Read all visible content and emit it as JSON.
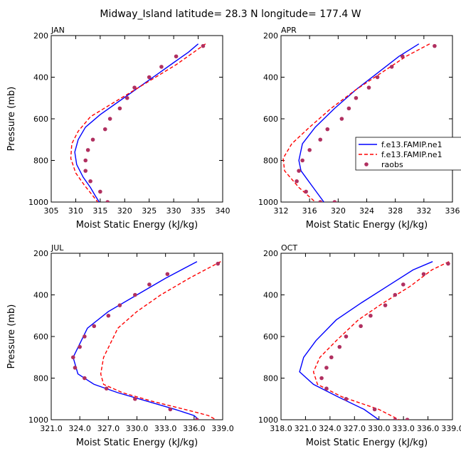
{
  "page_title": "Midway_Island   latitude= 28.3 N longitude= 177.4 W",
  "colors": {
    "model1": "#0000ff",
    "model2": "#ff0000",
    "raobs": "#b03060",
    "axis": "#000000"
  },
  "legend": {
    "items": [
      {
        "label": "f.e13.FAMIP.ne1",
        "style": "solid",
        "color": "#0000ff"
      },
      {
        "label": "f.e13.FAMIP.ne1",
        "style": "dashed",
        "color": "#ff0000"
      },
      {
        "label": "raobs",
        "style": "marker",
        "color": "#b03060"
      }
    ]
  },
  "chart_data": [
    {
      "type": "line",
      "title": "JAN",
      "xlabel": "Moist Static Energy (kJ/kg)",
      "ylabel": "Pressure (mb)",
      "xlim": [
        305,
        340
      ],
      "ylim": [
        1000,
        200
      ],
      "xticks": [
        305,
        310,
        315,
        320,
        325,
        330,
        335,
        340
      ],
      "xtick_labels": [
        "305",
        "310",
        "315",
        "320",
        "325",
        "330",
        "335",
        "340"
      ],
      "yticks": [
        200,
        400,
        600,
        800,
        1000
      ],
      "ytick_labels": [
        "200",
        "400",
        "600",
        "800",
        "1000"
      ],
      "series": [
        {
          "name": "f.e13.FAMIP.ne1",
          "style": "solid",
          "x": [
            335.0,
            333.0,
            330.0,
            327.0,
            324.0,
            321.0,
            318.0,
            315.0,
            312.0,
            310.5,
            309.8,
            310.2,
            311.5,
            313.0,
            314.0,
            314.8
          ],
          "y": [
            240,
            280,
            330,
            380,
            430,
            480,
            530,
            580,
            640,
            700,
            760,
            820,
            880,
            930,
            970,
            1000
          ]
        },
        {
          "name": "f.e13.FAMIP.ne1",
          "style": "dashed",
          "x": [
            336.5,
            333.5,
            330.5,
            327.0,
            323.5,
            320.0,
            316.5,
            313.0,
            310.5,
            309.2,
            309.0,
            310.0,
            311.8,
            313.5,
            314.5
          ],
          "y": [
            240,
            290,
            340,
            390,
            440,
            490,
            540,
            590,
            660,
            720,
            790,
            860,
            920,
            970,
            1000
          ]
        },
        {
          "name": "raobs",
          "style": "markers",
          "x": [
            336.0,
            330.5,
            327.5,
            325.0,
            322.0,
            320.5,
            319.0,
            317.0,
            316.0,
            313.5,
            312.5,
            312.0,
            312.0,
            313.0,
            315.0,
            316.5
          ],
          "y": [
            250,
            300,
            350,
            400,
            450,
            500,
            550,
            600,
            650,
            700,
            750,
            800,
            850,
            900,
            950,
            1000
          ]
        }
      ]
    },
    {
      "type": "line",
      "title": "APR",
      "xlabel": "Moist Static Energy (kJ/kg)",
      "ylabel": "Pressure (mb)",
      "xlim": [
        312,
        336
      ],
      "ylim": [
        1000,
        200
      ],
      "xticks": [
        312,
        316,
        320,
        324,
        328,
        332,
        336
      ],
      "xtick_labels": [
        "312",
        "316",
        "320",
        "324",
        "328",
        "332",
        "336"
      ],
      "yticks": [
        200,
        400,
        600,
        800,
        1000
      ],
      "ytick_labels": [
        "200",
        "400",
        "600",
        "800",
        "1000"
      ],
      "series": [
        {
          "name": "f.e13.FAMIP.ne1",
          "style": "solid",
          "x": [
            331.3,
            328.5,
            325.5,
            322.5,
            319.5,
            316.8,
            315.0,
            314.5,
            314.8,
            316.5,
            318.0
          ],
          "y": [
            240,
            300,
            380,
            460,
            550,
            640,
            720,
            800,
            850,
            930,
            1000
          ]
        },
        {
          "name": "f.e13.FAMIP.ne1",
          "style": "dashed",
          "x": [
            332.8,
            329.5,
            326.0,
            322.5,
            319.0,
            316.0,
            313.5,
            312.3,
            312.5,
            314.5,
            316.8
          ],
          "y": [
            240,
            300,
            380,
            460,
            550,
            640,
            720,
            790,
            850,
            930,
            1000
          ]
        },
        {
          "name": "raobs",
          "style": "markers",
          "x": [
            333.5,
            329.0,
            327.5,
            325.5,
            324.3,
            322.5,
            321.5,
            320.5,
            318.5,
            317.5,
            316.0,
            315.0,
            314.5,
            314.2,
            315.5,
            317.5,
            319.5
          ],
          "y": [
            250,
            300,
            350,
            400,
            450,
            500,
            550,
            600,
            650,
            700,
            750,
            800,
            850,
            900,
            950,
            1000,
            1000
          ]
        }
      ]
    },
    {
      "type": "line",
      "title": "JUL",
      "xlabel": "Moist Static Energy (kJ/kg)",
      "ylabel": "Pressure (mb)",
      "xlim": [
        321,
        339
      ],
      "ylim": [
        1000,
        200
      ],
      "xticks": [
        321,
        324,
        327,
        330,
        333,
        336,
        339
      ],
      "xtick_labels": [
        "321.0",
        "324.0",
        "327.0",
        "330.0",
        "333.0",
        "336.0",
        "339.0"
      ],
      "yticks": [
        200,
        400,
        600,
        800,
        1000
      ],
      "ytick_labels": [
        "200",
        "400",
        "600",
        "800",
        "1000"
      ],
      "series": [
        {
          "name": "f.e13.FAMIP.ne1",
          "style": "solid",
          "x": [
            336.3,
            333.0,
            330.0,
            327.0,
            324.8,
            323.3,
            323.8,
            325.5,
            328.0,
            331.0,
            334.0,
            336.0,
            336.5
          ],
          "y": [
            240,
            320,
            400,
            480,
            560,
            700,
            780,
            830,
            870,
            910,
            950,
            980,
            1000
          ]
        },
        {
          "name": "f.e13.FAMIP.ne1",
          "style": "dashed",
          "x": [
            338.8,
            335.5,
            332.5,
            330.0,
            328.0,
            326.5,
            326.2,
            326.5,
            328.5,
            331.5,
            335.0,
            337.5,
            338.3
          ],
          "y": [
            240,
            320,
            400,
            480,
            560,
            700,
            780,
            830,
            870,
            910,
            950,
            980,
            1000
          ]
        },
        {
          "name": "raobs",
          "style": "markers",
          "x": [
            338.5,
            333.2,
            331.3,
            329.8,
            328.2,
            327.0,
            325.5,
            324.5,
            324.0,
            323.3,
            323.5,
            324.5,
            326.8,
            329.8,
            333.5,
            336.3
          ],
          "y": [
            250,
            300,
            350,
            400,
            450,
            500,
            550,
            600,
            650,
            700,
            750,
            800,
            850,
            900,
            950,
            1000
          ]
        }
      ]
    },
    {
      "type": "line",
      "title": "OCT",
      "xlabel": "Moist Static Energy (kJ/kg)",
      "ylabel": "Pressure (mb)",
      "xlim": [
        318.03,
        339.03
      ],
      "ylim": [
        1000,
        200
      ],
      "xticks": [
        318.03,
        321.03,
        324.03,
        327.03,
        330.03,
        333.03,
        336.03,
        339.03
      ],
      "xtick_labels": [
        "318.0",
        "321.0",
        "324.0",
        "327.0",
        "330.0",
        "333.0",
        "336.0",
        "339.0"
      ],
      "yticks": [
        200,
        400,
        600,
        800,
        1000
      ],
      "ytick_labels": [
        "200",
        "400",
        "600",
        "800",
        "1000"
      ],
      "series": [
        {
          "name": "f.e13.FAMIP.ne1",
          "style": "solid",
          "x": [
            336.6,
            334.2,
            331.0,
            327.8,
            324.8,
            322.3,
            320.8,
            320.3,
            322.0,
            325.0,
            328.2,
            330.0
          ],
          "y": [
            240,
            280,
            360,
            440,
            520,
            620,
            700,
            770,
            830,
            890,
            950,
            1000
          ]
        },
        {
          "name": "f.e13.FAMIP.ne1",
          "style": "dashed",
          "x": [
            338.6,
            336.5,
            333.8,
            330.5,
            327.5,
            324.8,
            322.8,
            322.0,
            322.5,
            325.5,
            330.0,
            332.5
          ],
          "y": [
            240,
            280,
            360,
            440,
            520,
            620,
            700,
            770,
            830,
            890,
            950,
            1000
          ]
        },
        {
          "name": "raobs",
          "style": "markers",
          "x": [
            338.5,
            335.5,
            333.0,
            332.0,
            330.8,
            329.0,
            327.8,
            326.0,
            325.2,
            324.2,
            323.6,
            323.0,
            323.6,
            326.0,
            329.5,
            332.0,
            333.5
          ],
          "y": [
            250,
            300,
            350,
            400,
            450,
            500,
            550,
            600,
            650,
            700,
            750,
            800,
            850,
            900,
            950,
            1000,
            1000
          ]
        }
      ]
    }
  ]
}
